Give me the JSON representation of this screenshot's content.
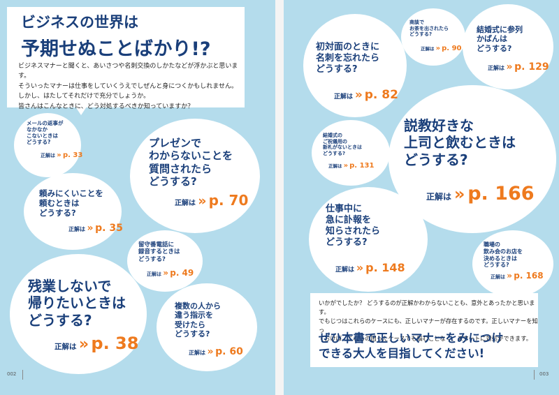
{
  "pages": {
    "left_number": "002",
    "right_number": "003"
  },
  "answer_label": "正解は",
  "chevron": "»",
  "intro": {
    "heading_line1": "ビジネスの世界は",
    "heading_line2": "予期せぬことばかり!?",
    "body": "ビジネスマナーと聞くと、あいさつや名刺交換のしかたなどが浮かぶと思います。\nそういったマナーは仕事をしていくうえでしぜんと身につくかもしれません。\nしかし、はたしてそれだけで充分でしょうか。\n皆さんはこんなときに、どう対処するべきか知っていますか？"
  },
  "questions": {
    "mail": {
      "text": "メールの返事が\nなかなか\nこないときは\nどうする?",
      "page": "p. 33"
    },
    "presen": {
      "text": "プレゼンで\nわからないことを\n質問されたら\nどうする?",
      "page": "p. 70"
    },
    "tanomi": {
      "text": "頼みにくいことを\n頼むときは\nどうする?",
      "page": "p. 35"
    },
    "rusuden": {
      "text": "留守番電話に\n録音するときは\nどうする?",
      "page": "p. 49"
    },
    "zangyo": {
      "text": "残業しないで\n帰りたいときは\nどうする?",
      "page": "p. 38"
    },
    "fukusu": {
      "text": "複数の人から\n違う指示を\n受けたら\nどうする?",
      "page": "p. 60"
    },
    "meishi": {
      "text": "初対面のときに\n名刺を忘れたら\nどうする?",
      "page": "p. 82"
    },
    "shodan": {
      "text": "商談で\nお茶を出されたら\nどうする?",
      "page": "p. 90"
    },
    "kekkon": {
      "text": "結婚式に参列\nかばんは\nどうする?",
      "page": "p. 129"
    },
    "shugi": {
      "text": "結婚式の\nご祝儀用の\n新札がないときは\nどうする?",
      "page": "p. 131"
    },
    "sekkyo": {
      "text": "説教好きな\n上司と飲むときは\nどうする?",
      "page": "p. 166"
    },
    "fuho": {
      "text": "仕事中に\n急に訃報を\n知らされたら\nどうする?",
      "page": "p. 148"
    },
    "nomikai": {
      "text": "職場の\n飲み会のお店を\n決めるときは\nどうする?",
      "page": "p. 168"
    }
  },
  "closing": {
    "body": "いかがでしたか？ どうするのが正解かわからないことも、意外とあったかと思います。\nでもじつはこれらのケースにも、正しいマナーが存在するのです。正しいマナーを知っ\nておけば、これらの困ったケースでも悩むことなく、スマートに対処ができます。",
    "headline": "ぜひ本書で正しいマナーをみにつけ\nできる大人を目指してください!"
  },
  "colors": {
    "background": "#b4dcec",
    "navy": "#1a3f7a",
    "accent_orange": "#ee7a1e",
    "bubble": "#ffffff"
  }
}
